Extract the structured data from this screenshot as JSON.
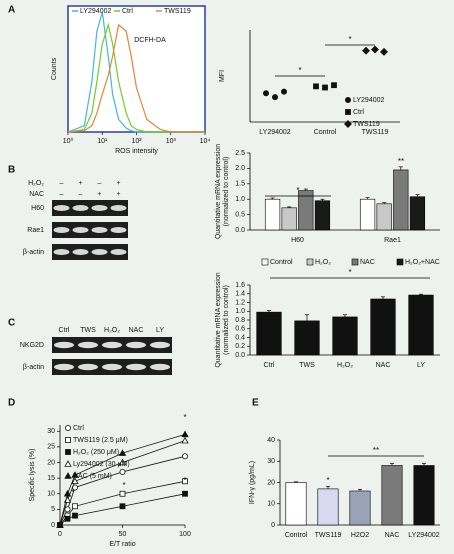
{
  "panel_labels": [
    "A",
    "B",
    "C",
    "D",
    "E"
  ],
  "gels": [
    {
      "conditions": [
        {
          "label": "H₂O₂",
          "signs": [
            "–",
            "+",
            "–",
            "+"
          ]
        },
        {
          "label": "NAC",
          "signs": [
            "–",
            "–",
            "+",
            "+"
          ]
        }
      ],
      "rows": [
        "H60",
        "Rae1",
        "β-actin"
      ]
    },
    {
      "columns": [
        "Ctrl",
        "TWS",
        "H₂O₂",
        "NAC",
        "LY"
      ],
      "rows": [
        "NKG2D",
        "β-actin"
      ]
    }
  ],
  "chart_data": [
    {
      "type": "line",
      "xlabel": "ROS intensity",
      "ylabel": "Counts",
      "annotations": [
        "DCFH-DA"
      ],
      "log_x": true,
      "frame_color": "#2a3fa0",
      "x": [
        1,
        3,
        5,
        7,
        10,
        15,
        20,
        30,
        50,
        70,
        100,
        200,
        500,
        1000,
        10000
      ],
      "xlim": [
        1,
        10000
      ],
      "xticks": [
        {
          "value": 1,
          "label": "10⁰"
        },
        {
          "value": 10,
          "label": "10¹"
        },
        {
          "value": 100,
          "label": "10²"
        },
        {
          "value": 1000,
          "label": "10³"
        },
        {
          "value": 10000,
          "label": "10⁴"
        }
      ],
      "ylim": [
        0,
        100
      ],
      "series": [
        {
          "name": "LY294002",
          "color": "#3fb8d8",
          "values": [
            0,
            5,
            40,
            80,
            95,
            60,
            30,
            10,
            3,
            1,
            0,
            0,
            0,
            0,
            0
          ]
        },
        {
          "name": "Ctrl",
          "color": "#6fcf2a",
          "values": [
            0,
            2,
            15,
            40,
            70,
            85,
            70,
            40,
            15,
            5,
            2,
            0,
            0,
            0,
            0
          ]
        },
        {
          "name": "TWS119",
          "color": "#e8833a",
          "values": [
            0,
            1,
            5,
            15,
            30,
            45,
            60,
            85,
            80,
            60,
            35,
            10,
            2,
            0,
            0
          ]
        }
      ]
    },
    {
      "type": "scatter",
      "ylabel": "MFI",
      "annotations": [
        "*",
        "*"
      ],
      "categories": [
        "LY294002",
        "Control",
        "TWS119"
      ],
      "ylim": [
        0,
        400
      ],
      "series": [
        {
          "name": "LY294002",
          "marker": "circle",
          "color": "#111",
          "values": [
            [
              125,
              108,
              132
            ],
            null,
            null
          ]
        },
        {
          "name": "Ctrl",
          "marker": "square",
          "color": "#111",
          "values": [
            null,
            [
              155,
              150,
              160
            ],
            null
          ]
        },
        {
          "name": "TWS119",
          "marker": "diamond",
          "color": "#111",
          "values": [
            null,
            null,
            [
              310,
              315,
              305
            ]
          ]
        }
      ]
    },
    {
      "type": "bar",
      "ylabel": [
        "Quantitative mRNA expression",
        "(normalized to control)"
      ],
      "annotations": [
        "*",
        "**"
      ],
      "categories": [
        "H60",
        "Rae1"
      ],
      "ylim": [
        0,
        2.5
      ],
      "yticks": [
        {
          "value": 0,
          "label": "0.0"
        },
        0.5,
        {
          "value": 1,
          "label": "1.0"
        },
        1.5,
        {
          "value": 2,
          "label": "2.0"
        },
        2.5
      ],
      "series": [
        {
          "name": "Control",
          "color": "#ffffff",
          "values": [
            1.0,
            1.0
          ],
          "errors": [
            0.04,
            0.05
          ]
        },
        {
          "name": "H₂O₂",
          "color": "#c8c8c8",
          "values": [
            0.72,
            0.85
          ],
          "errors": [
            0.03,
            0.04
          ]
        },
        {
          "name": "NAC",
          "color": "#7a7a7a",
          "values": [
            1.28,
            1.95
          ],
          "errors": [
            0.05,
            0.1
          ]
        },
        {
          "name": "H₂O₂+NAC",
          "color": "#1a1a1a",
          "values": [
            0.95,
            1.08
          ],
          "errors": [
            0.05,
            0.07
          ]
        }
      ]
    },
    {
      "type": "bar",
      "ylabel": [
        "Quantitative mRNA expression",
        "(normalized to control)"
      ],
      "annotations": [
        "*"
      ],
      "categories": [
        "Ctrl",
        "TWS",
        "H₂O₂",
        "NAC",
        "LY"
      ],
      "values": [
        0.98,
        0.78,
        0.87,
        1.28,
        1.37
      ],
      "errors": [
        0.04,
        0.14,
        0.05,
        0.05,
        0.02
      ],
      "color": "#111111",
      "ylim": [
        0,
        1.6
      ],
      "yticks": [
        {
          "value": 0,
          "label": "0.0"
        },
        0.2,
        0.4,
        0.6,
        0.8,
        {
          "value": 1,
          "label": "1.0"
        },
        1.2,
        1.4,
        1.6
      ]
    },
    {
      "type": "line",
      "xlabel": "E/T ratio",
      "ylabel": "Specific lysis (%)",
      "annotations": [
        "*",
        "*",
        "*",
        "*"
      ],
      "x": [
        0,
        6,
        12,
        50,
        100
      ],
      "xlim": [
        0,
        100
      ],
      "xticks": [
        0,
        50,
        100
      ],
      "ylim": [
        0,
        32
      ],
      "yticks": [
        0,
        5,
        10,
        15,
        20,
        25,
        30
      ],
      "series": [
        {
          "name": "Ctrl",
          "marker": "circle-open",
          "color": "#111",
          "values": [
            0,
            5,
            12,
            17,
            22
          ]
        },
        {
          "name": "TWS119 (2.5 μM)",
          "marker": "square-open",
          "color": "#111",
          "values": [
            0,
            3,
            6,
            10,
            14
          ]
        },
        {
          "name": "H₂O₂ (250 μM)",
          "marker": "square",
          "color": "#111",
          "values": [
            0,
            2,
            3,
            6,
            10
          ]
        },
        {
          "name": "Ly294002 (30 μM)",
          "marker": "triangle-open",
          "color": "#111",
          "values": [
            0,
            8,
            14,
            20,
            27
          ]
        },
        {
          "name": "NAC (5 mM)",
          "marker": "triangle",
          "color": "#111",
          "values": [
            0,
            10,
            16,
            23,
            29
          ]
        }
      ]
    },
    {
      "type": "bar",
      "ylabel": "IFN-γ (pg/mL)",
      "annotations": [
        "*",
        "**"
      ],
      "categories": [
        "Control",
        "TWS119",
        "H2O2",
        "NAC",
        "LY294002"
      ],
      "values": [
        20,
        17,
        16,
        28,
        28
      ],
      "errors": [
        0.3,
        1.2,
        0.8,
        1.0,
        1.0
      ],
      "colors": [
        "#ffffff",
        "#d8d8f0",
        "#9aa2b8",
        "#7a7a7a",
        "#111111"
      ],
      "ylim": [
        0,
        40
      ],
      "yticks": [
        0,
        10,
        20,
        30,
        40
      ]
    }
  ]
}
